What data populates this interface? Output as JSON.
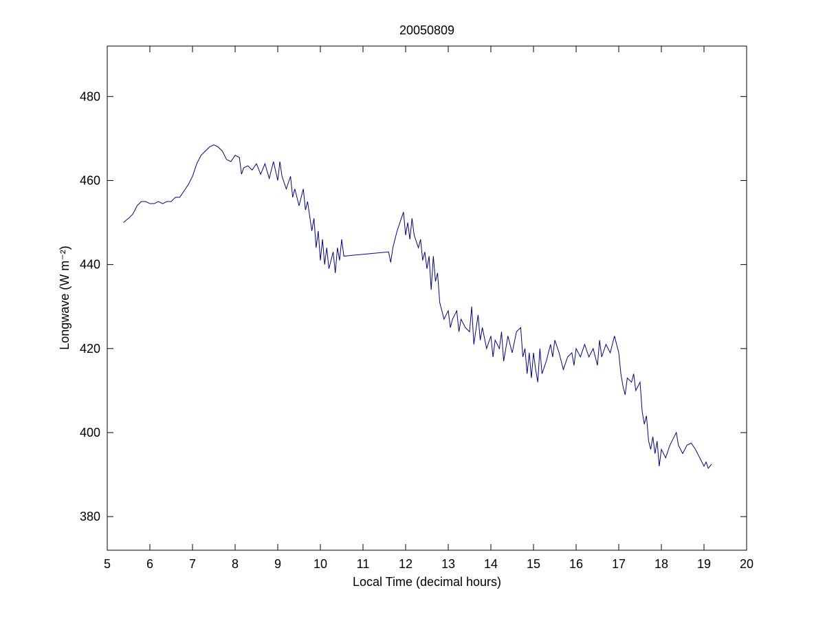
{
  "chart_data": {
    "type": "line",
    "title": "20050809",
    "xlabel": "Local Time (decimal hours)",
    "ylabel": "Longwave (W m⁻²)",
    "xlim": [
      5,
      20
    ],
    "ylim": [
      372,
      492
    ],
    "xticks": [
      5,
      6,
      7,
      8,
      9,
      10,
      11,
      12,
      13,
      14,
      15,
      16,
      17,
      18,
      19,
      20
    ],
    "yticks": [
      380,
      400,
      420,
      440,
      460,
      480
    ],
    "color": "#00008b",
    "x": [
      5.38,
      5.5,
      5.6,
      5.7,
      5.8,
      5.9,
      6.0,
      6.1,
      6.2,
      6.3,
      6.4,
      6.5,
      6.6,
      6.7,
      6.8,
      6.9,
      7.0,
      7.1,
      7.2,
      7.3,
      7.4,
      7.5,
      7.6,
      7.7,
      7.8,
      7.9,
      8.0,
      8.1,
      8.15,
      8.2,
      8.3,
      8.4,
      8.5,
      8.6,
      8.7,
      8.8,
      8.9,
      9.0,
      9.05,
      9.1,
      9.2,
      9.3,
      9.35,
      9.4,
      9.5,
      9.6,
      9.65,
      9.7,
      9.8,
      9.85,
      9.9,
      9.95,
      10.0,
      10.05,
      10.1,
      10.15,
      10.2,
      10.3,
      10.35,
      10.4,
      10.45,
      10.5,
      10.55,
      11.6,
      11.65,
      11.7,
      11.8,
      11.9,
      11.95,
      12.0,
      12.05,
      12.1,
      12.15,
      12.2,
      12.3,
      12.35,
      12.4,
      12.45,
      12.5,
      12.55,
      12.6,
      12.65,
      12.7,
      12.75,
      12.8,
      12.9,
      13.0,
      13.05,
      13.1,
      13.2,
      13.25,
      13.3,
      13.4,
      13.5,
      13.55,
      13.6,
      13.7,
      13.75,
      13.8,
      13.9,
      14.0,
      14.05,
      14.1,
      14.2,
      14.25,
      14.3,
      14.4,
      14.5,
      14.6,
      14.7,
      14.75,
      14.8,
      14.85,
      14.9,
      14.95,
      15.0,
      15.05,
      15.1,
      15.15,
      15.2,
      15.3,
      15.4,
      15.45,
      15.5,
      15.6,
      15.7,
      15.8,
      15.9,
      15.95,
      16.0,
      16.1,
      16.2,
      16.3,
      16.4,
      16.5,
      16.55,
      16.6,
      16.7,
      16.8,
      16.9,
      16.95,
      17.0,
      17.05,
      17.1,
      17.15,
      17.2,
      17.3,
      17.35,
      17.4,
      17.5,
      17.55,
      17.6,
      17.65,
      17.7,
      17.75,
      17.8,
      17.85,
      17.9,
      17.95,
      18.0,
      18.1,
      18.2,
      18.3,
      18.35,
      18.4,
      18.5,
      18.6,
      18.7,
      18.8,
      18.9,
      19.0,
      19.05,
      19.1,
      19.18
    ],
    "values": [
      450,
      451,
      452,
      454,
      455,
      455,
      454.5,
      454.5,
      455,
      454.5,
      455,
      455,
      456,
      456,
      457.5,
      459,
      461,
      464,
      466,
      467,
      468,
      468.5,
      468,
      467,
      465,
      464.5,
      466,
      465.5,
      461.5,
      463,
      463.5,
      462.5,
      464,
      461.5,
      464,
      460.5,
      464.5,
      460,
      464.5,
      461,
      458,
      461,
      456,
      458,
      454,
      458,
      453,
      455,
      448,
      451,
      444,
      448,
      441,
      446,
      440,
      444,
      439,
      443,
      438,
      444,
      441,
      446,
      442,
      443,
      440.5,
      444,
      448,
      451,
      452.5,
      447,
      450,
      446,
      451,
      447,
      444,
      446,
      441,
      443,
      439,
      442,
      434,
      442,
      436,
      438,
      431,
      427,
      429,
      425,
      427,
      429,
      424,
      427,
      425,
      424,
      430,
      421,
      428,
      422,
      425,
      420,
      423,
      418,
      422,
      420,
      424,
      417,
      423,
      419,
      424,
      425,
      418,
      420,
      414,
      419,
      413,
      419,
      415,
      412,
      420,
      414,
      417,
      421,
      418,
      422,
      419,
      415,
      418,
      419,
      416,
      420,
      418,
      421,
      418,
      420,
      416,
      422,
      418,
      421,
      419,
      423,
      421,
      419,
      414,
      411,
      409,
      413,
      412,
      414,
      410,
      412,
      405,
      402,
      404,
      398,
      396,
      399,
      395,
      398,
      392,
      396,
      394,
      397,
      399,
      400,
      397,
      395,
      397,
      397.5,
      396,
      394,
      392,
      393,
      391.5,
      392.5
    ]
  }
}
